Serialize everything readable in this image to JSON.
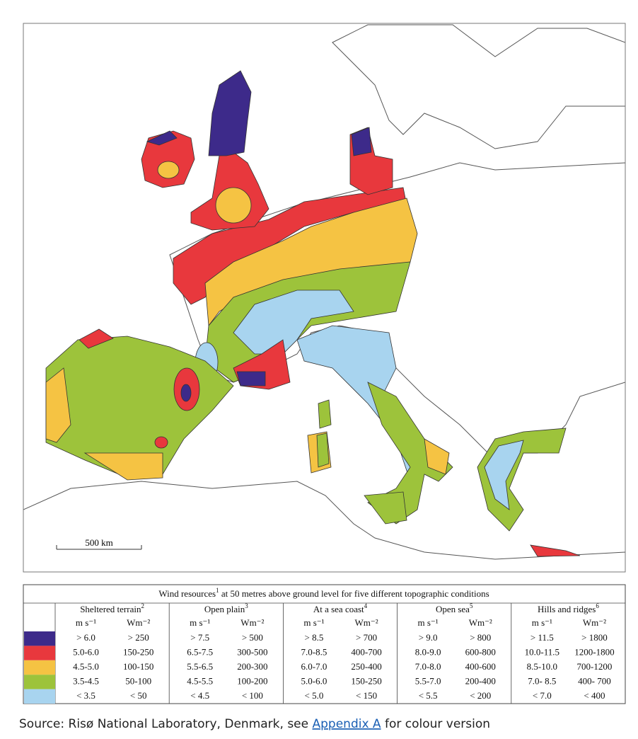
{
  "map": {
    "scale_label": "500 km"
  },
  "legend": {
    "title": {
      "text": "Wind resources",
      "note": "1",
      "rest": " at 50 metres above ground level for five different topographic conditions"
    },
    "groups": [
      {
        "name": "Sheltered terrain",
        "note": "2"
      },
      {
        "name": "Open plain",
        "note": "3"
      },
      {
        "name": "At a sea coast",
        "note": "4"
      },
      {
        "name": "Open sea",
        "note": "5"
      },
      {
        "name": "Hills and ridges",
        "note": "6"
      }
    ],
    "units": [
      "m s⁻¹",
      "Wm⁻²"
    ],
    "rows": [
      {
        "color": "#3d2a8a",
        "cells": [
          "> 6.0",
          "> 250",
          "> 7.5",
          "> 500",
          "> 8.5",
          "> 700",
          "> 9.0",
          "> 800",
          "> 11.5",
          "> 1800"
        ]
      },
      {
        "color": "#e8383d",
        "cells": [
          "5.0-6.0",
          "150-250",
          "6.5-7.5",
          "300-500",
          "7.0-8.5",
          "400-700",
          "8.0-9.0",
          "600-800",
          "10.0-11.5",
          "1200-1800"
        ]
      },
      {
        "color": "#f5c343",
        "cells": [
          "4.5-5.0",
          "100-150",
          "5.5-6.5",
          "200-300",
          "6.0-7.0",
          "250-400",
          "7.0-8.0",
          "400-600",
          "8.5-10.0",
          "700-1200"
        ]
      },
      {
        "color": "#9dc33b",
        "cells": [
          "3.5-4.5",
          "50-100",
          "4.5-5.5",
          "100-200",
          "5.0-6.0",
          "150-250",
          "5.5-7.0",
          "200-400",
          "7.0- 8.5",
          "400- 700"
        ]
      },
      {
        "color": "#a8d4ef",
        "cells": [
          "< 3.5",
          "< 50",
          "< 4.5",
          "< 100",
          "< 5.0",
          "< 150",
          "< 5.5",
          "< 200",
          "< 7.0",
          "< 400"
        ]
      }
    ]
  },
  "source": {
    "text": "Source: Risø National Laboratory, Denmark, see ",
    "link": "Appendix A",
    "rest": " for colour version"
  }
}
